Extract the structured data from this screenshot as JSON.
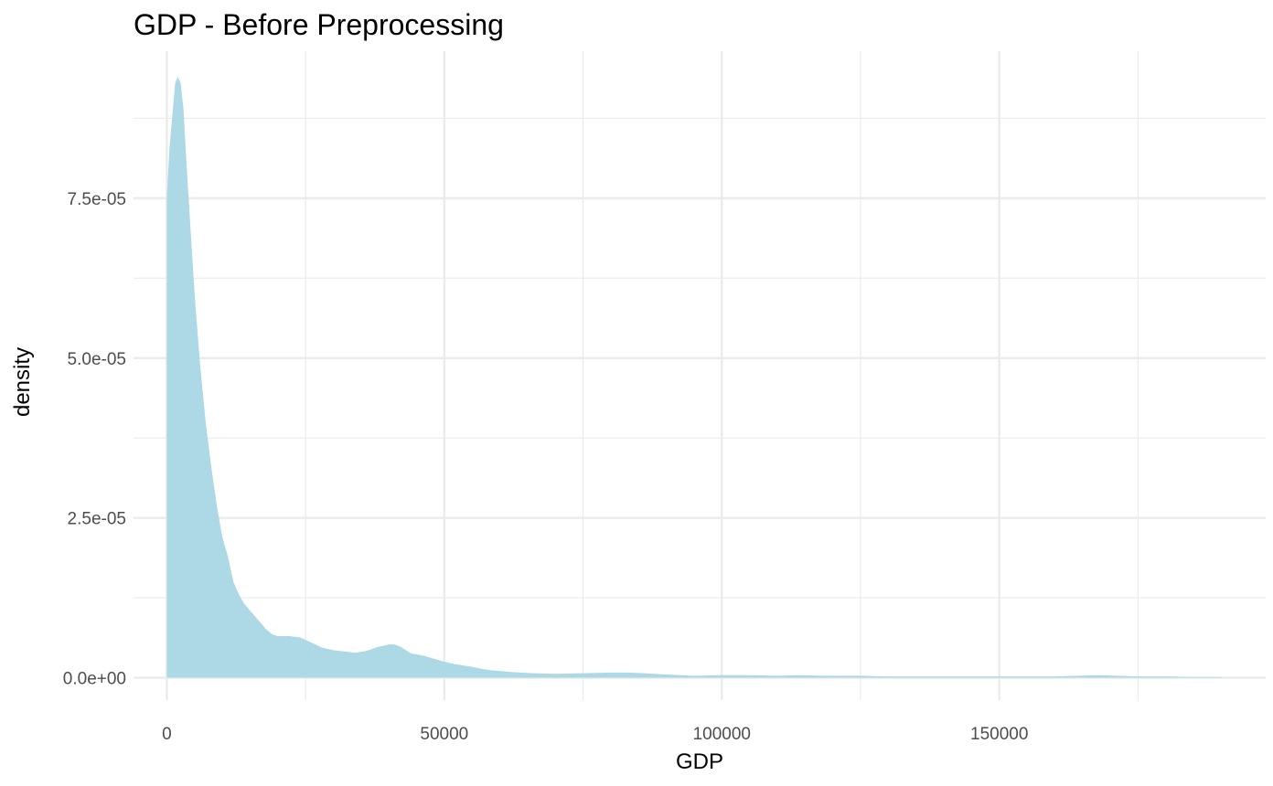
{
  "chart_data": {
    "type": "area",
    "title": "GDP - Before Preprocessing",
    "xlabel": "GDP",
    "ylabel": "density",
    "xlim": [
      -6000,
      198000
    ],
    "ylim": [
      -3.5e-06,
      9.8e-05
    ],
    "x_ticks": [
      {
        "value": 0,
        "label": "0"
      },
      {
        "value": 50000,
        "label": "50000"
      },
      {
        "value": 100000,
        "label": "100000"
      },
      {
        "value": 150000,
        "label": "150000"
      }
    ],
    "x_minor": [
      25000,
      75000,
      125000,
      175000
    ],
    "y_ticks": [
      {
        "value": 0,
        "label": "0.0e+00"
      },
      {
        "value": 2.5e-05,
        "label": "2.5e-05"
      },
      {
        "value": 5e-05,
        "label": "5.0e-05"
      },
      {
        "value": 7.5e-05,
        "label": "7.5e-05"
      }
    ],
    "y_minor": [
      1.25e-05,
      3.75e-05,
      6.25e-05,
      8.75e-05
    ],
    "grid": true,
    "fill_color": "#add8e6",
    "grid_color": "#ebebeb",
    "series": [
      {
        "x": [
          0,
          500,
          1000,
          1500,
          2000,
          2500,
          3000,
          3500,
          4000,
          4500,
          5000,
          6000,
          7000,
          8000,
          9000,
          10000,
          11000,
          12000,
          13000,
          14000,
          15000,
          16000,
          17000,
          18000,
          19000,
          20000,
          22000,
          24000,
          26000,
          28000,
          30000,
          32000,
          34000,
          36000,
          38000,
          40000,
          41000,
          42000,
          44000,
          46000,
          48000,
          50000,
          52000,
          55000,
          58000,
          62000,
          66000,
          70000,
          75000,
          80000,
          83000,
          86000,
          90000,
          95000,
          100000,
          105000,
          110000,
          114000,
          118000,
          125000,
          130000,
          140000,
          150000,
          160000,
          168000,
          175000,
          180000,
          185000,
          190000
        ],
        "y": [
          7.5e-05,
          8.3e-05,
          8.8e-05,
          9.3e-05,
          9.4e-05,
          9.3e-05,
          8.9e-05,
          8.1e-05,
          7.4e-05,
          6.7e-05,
          6e-05,
          4.9e-05,
          4e-05,
          3.3e-05,
          2.7e-05,
          2.2e-05,
          1.9e-05,
          1.5e-05,
          1.3e-05,
          1.15e-05,
          1.05e-05,
          9.5e-06,
          8.5e-06,
          7.5e-06,
          6.8e-06,
          6.5e-06,
          6.5e-06,
          6.3e-06,
          5.5e-06,
          4.7e-06,
          4.3e-06,
          4.1e-06,
          3.9e-06,
          4.2e-06,
          4.8e-06,
          5.2e-06,
          5.2e-06,
          4.9e-06,
          3.8e-06,
          3.5e-06,
          3e-06,
          2.5e-06,
          2.1e-06,
          1.7e-06,
          1.2e-06,
          9e-07,
          7e-07,
          6e-07,
          7e-07,
          8e-07,
          8e-07,
          7e-07,
          5e-07,
          3e-07,
          4e-07,
          4e-07,
          3e-07,
          4e-07,
          3e-07,
          3e-07,
          2e-07,
          2e-07,
          2e-07,
          2e-07,
          4e-07,
          2e-07,
          2e-07,
          1e-07,
          1e-07
        ]
      }
    ]
  }
}
